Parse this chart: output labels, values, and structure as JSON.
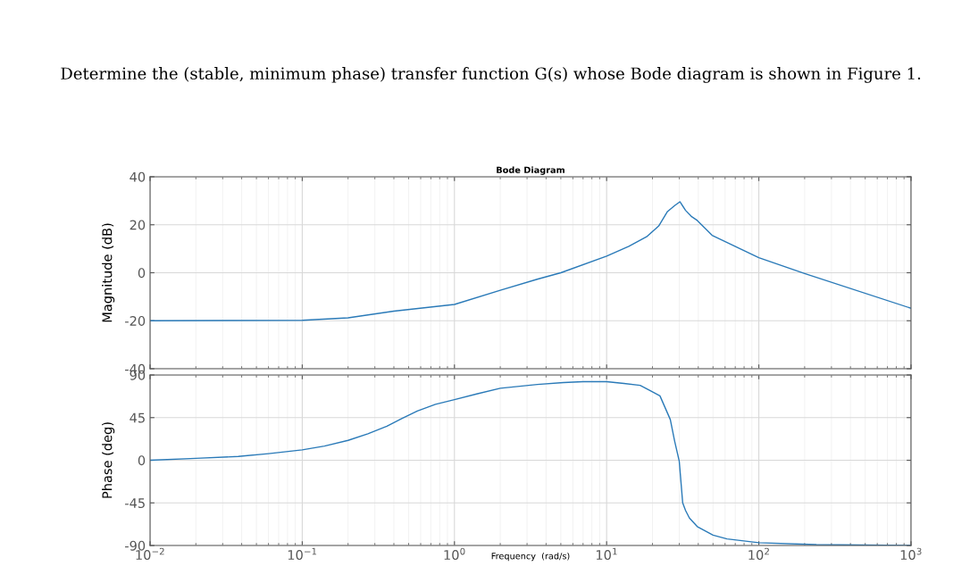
{
  "chart_data": [
    {
      "type": "line",
      "title": "Bode Diagram",
      "ylabel": "Magnitude (dB)",
      "annotations": [
        "Determine the (stable, minimum phase) transfer function G(s) whose Bode diagram is shown in Figure 1."
      ],
      "log": "x",
      "grid": true,
      "tick_labels": "y",
      "line_style": "solid",
      "xlim": [
        0.01,
        1000
      ],
      "ylim": [
        -40,
        40
      ],
      "yticks": [
        -40,
        -20,
        0,
        20,
        40
      ],
      "xticks": [
        {
          "value": 0.01,
          "label": null
        },
        {
          "value": 0.1,
          "label": null
        },
        {
          "value": 1,
          "label": null
        },
        {
          "value": 10,
          "label": null
        },
        {
          "value": 100,
          "label": null
        },
        {
          "value": 1000,
          "label": null
        }
      ],
      "series": [
        {
          "color": "#2a7ab8",
          "x": [
            0.01,
            0.1,
            0.2,
            0.4,
            1,
            2.0,
            3.5,
            5.0,
            10,
            14,
            18.3,
            22,
            25.1,
            28,
            30.3,
            33,
            36,
            39.4,
            49.3,
            100,
            200,
            1000
          ],
          "values": [
            -20.0,
            -19.8,
            -18.8,
            -16.0,
            -13.2,
            -7.3,
            -2.7,
            0.0,
            6.9,
            11,
            15.0,
            19.5,
            25.5,
            28,
            29.6,
            26,
            23.5,
            21.8,
            15.6,
            6.3,
            -0.3,
            -14.8
          ]
        }
      ]
    },
    {
      "type": "line",
      "xlabel": "Frequency  (rad/s)",
      "ylabel": "Phase (deg)",
      "log": "x",
      "grid": true,
      "line_style": "solid",
      "xlim": [
        0.01,
        1000
      ],
      "ylim": [
        -90,
        90
      ],
      "yticks": [
        -90,
        -45,
        0,
        45,
        90
      ],
      "xticks": [
        {
          "value": 0.01,
          "label": "10$^{−2}$"
        },
        {
          "value": 0.1,
          "label": "10$^{−1}$"
        },
        {
          "value": 1,
          "label": "10$^{0}$"
        },
        {
          "value": 10,
          "label": "10$^{1}$"
        },
        {
          "value": 100,
          "label": "10$^{2}$"
        },
        {
          "value": 1000,
          "label": "10$^{3}$"
        }
      ],
      "series": [
        {
          "color": "#2a7ab8",
          "x": [
            0.01,
            0.02,
            0.038,
            0.06,
            0.1,
            0.14,
            0.2,
            0.27,
            0.36,
            0.45,
            0.57,
            0.75,
            1,
            1.4,
            2,
            3.5,
            5.2,
            7,
            10,
            13,
            16.6,
            19,
            22.4,
            26.2,
            28,
            30,
            31.6,
            33,
            35,
            39.4,
            50,
            61.8,
            100,
            239,
            1000
          ],
          "values": [
            0,
            2,
            4,
            7,
            11,
            15,
            21,
            28,
            36,
            44,
            52,
            59,
            64,
            70,
            76,
            80,
            82,
            83,
            83,
            81,
            79,
            74,
            68,
            43,
            20,
            -1,
            -45,
            -53,
            -61,
            -70,
            -79,
            -83,
            -87,
            -89,
            -90
          ]
        }
      ]
    }
  ]
}
